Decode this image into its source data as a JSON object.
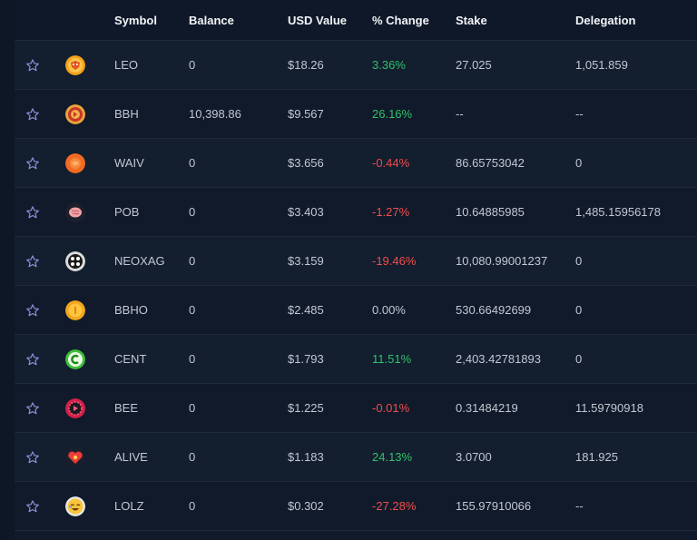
{
  "headers": {
    "symbol": "Symbol",
    "balance": "Balance",
    "usd_value": "USD Value",
    "change": "% Change",
    "stake": "Stake",
    "delegation": "Delegation"
  },
  "colors": {
    "positive": "#2fc26a",
    "negative": "#f04d4d",
    "star": "#8b90d8"
  },
  "tokens": [
    {
      "symbol": "LEO",
      "balance": "0",
      "usd": "$18.26",
      "change": "3.36%",
      "trend": "pos",
      "stake": "27.025",
      "delegation": "1,051.859",
      "icon": "leo-lion-icon"
    },
    {
      "symbol": "BBH",
      "balance": "10,398.86",
      "usd": "$9.567",
      "change": "26.16%",
      "trend": "pos",
      "stake": "--",
      "delegation": "--",
      "icon": "bbh-coin-icon"
    },
    {
      "symbol": "WAIV",
      "balance": "0",
      "usd": "$3.656",
      "change": "-0.44%",
      "trend": "neg",
      "stake": "86.65753042",
      "delegation": "0",
      "icon": "waiv-icon"
    },
    {
      "symbol": "POB",
      "balance": "0",
      "usd": "$3.403",
      "change": "-1.27%",
      "trend": "neg",
      "stake": "10.64885985",
      "delegation": "1,485.15956178",
      "icon": "pob-brain-icon"
    },
    {
      "symbol": "NEOXAG",
      "balance": "0",
      "usd": "$3.159",
      "change": "-19.46%",
      "trend": "neg",
      "stake": "10,080.99001237",
      "delegation": "0",
      "icon": "neoxag-icon"
    },
    {
      "symbol": "BBHO",
      "balance": "0",
      "usd": "$2.485",
      "change": "0.00%",
      "trend": "neu",
      "stake": "530.66492699",
      "delegation": "0",
      "icon": "bbho-coin-icon"
    },
    {
      "symbol": "CENT",
      "balance": "0",
      "usd": "$1.793",
      "change": "11.51%",
      "trend": "pos",
      "stake": "2,403.42781893",
      "delegation": "0",
      "icon": "cent-coin-icon"
    },
    {
      "symbol": "BEE",
      "balance": "0",
      "usd": "$1.225",
      "change": "-0.01%",
      "trend": "neg",
      "stake": "0.31484219",
      "delegation": "11.59790918",
      "icon": "bee-gear-icon"
    },
    {
      "symbol": "ALIVE",
      "balance": "0",
      "usd": "$1.183",
      "change": "24.13%",
      "trend": "pos",
      "stake": "3.0700",
      "delegation": "181.925",
      "icon": "alive-heart-icon"
    },
    {
      "symbol": "LOLZ",
      "balance": "0",
      "usd": "$0.302",
      "change": "-27.28%",
      "trend": "neg",
      "stake": "155.97910066",
      "delegation": "--",
      "icon": "lolz-laugh-icon"
    }
  ]
}
